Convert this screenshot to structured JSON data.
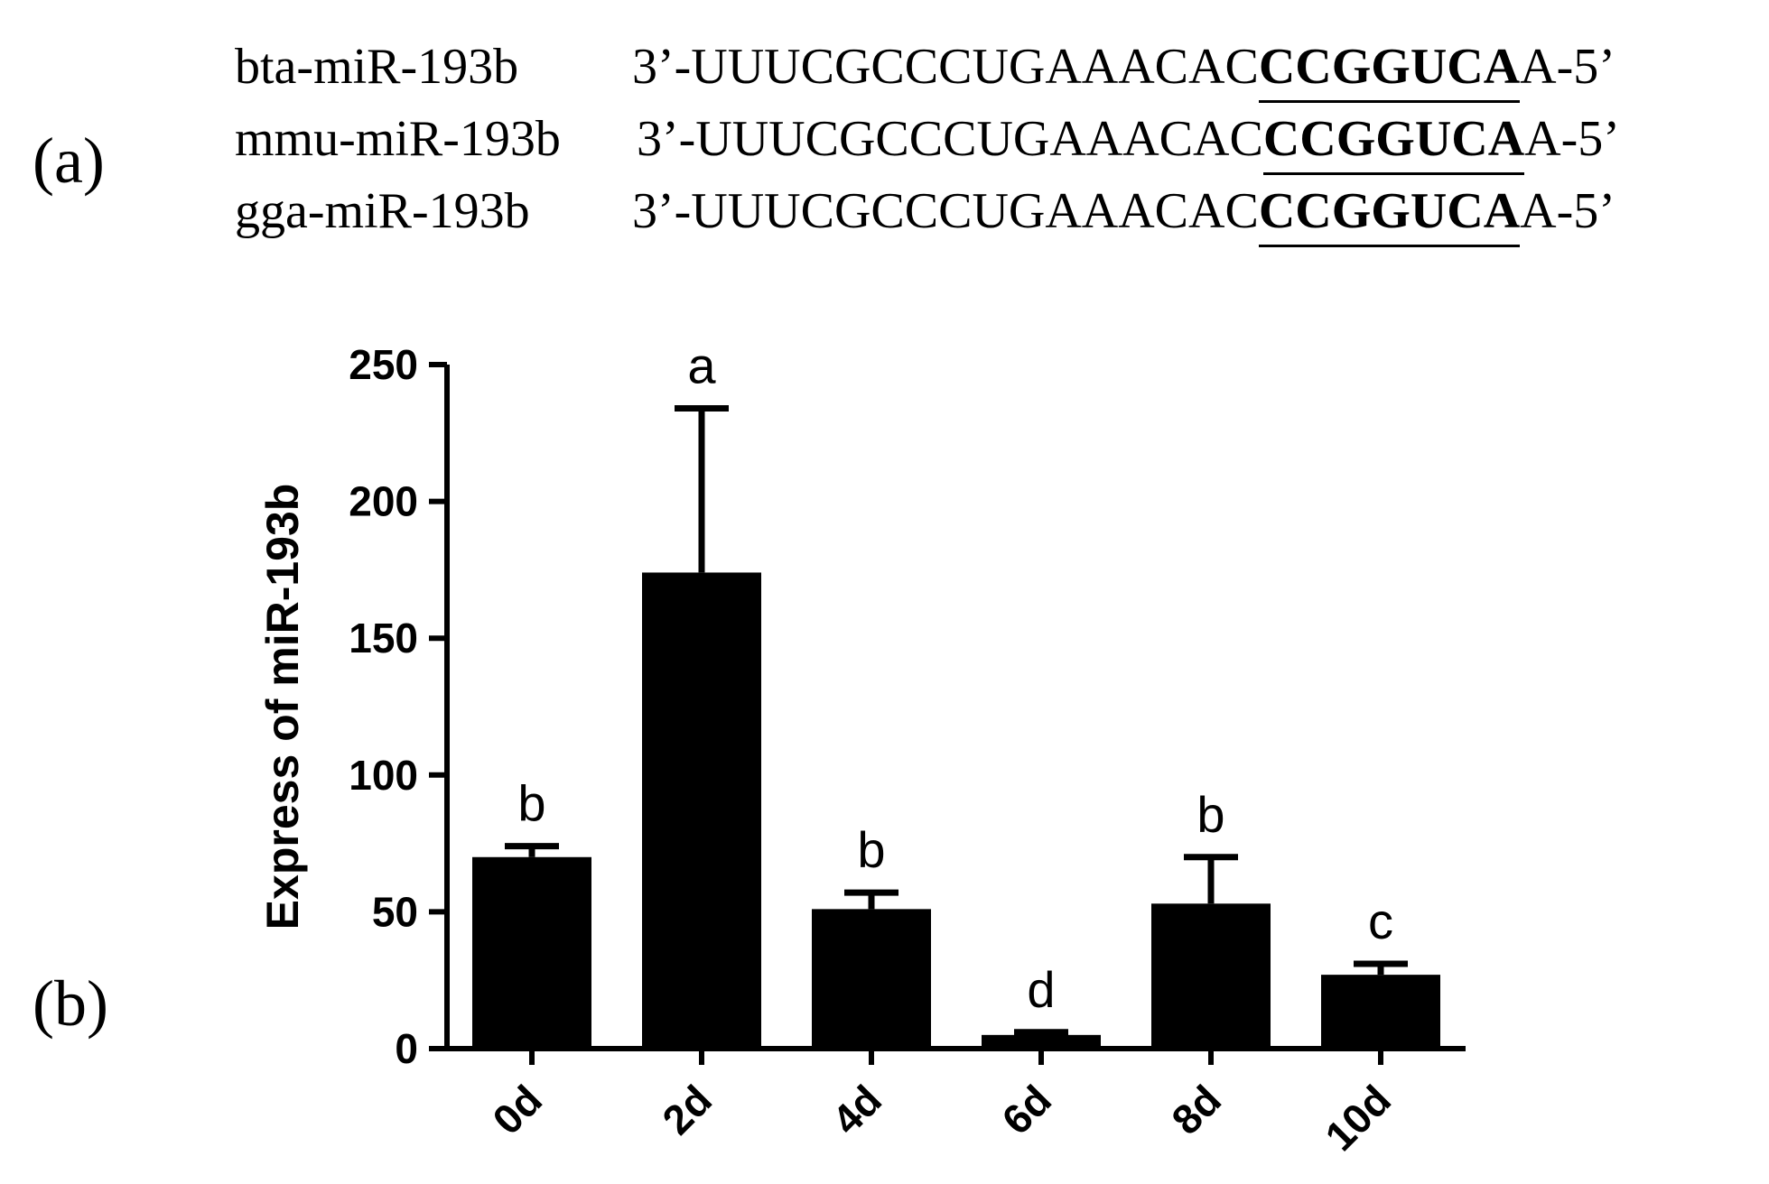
{
  "panels": {
    "a_label": "(a)",
    "b_label": "(b)"
  },
  "sequences": [
    {
      "name": "bta-miR-193b",
      "prefix": "3’-UUUCGCCCUGAAACAC",
      "seed": "CCGGUCA",
      "suffix": "A-5’"
    },
    {
      "name": "mmu-miR-193b",
      "prefix": "3’-UUUCGCCCUGAAACAC",
      "seed": "CCGGUCA",
      "suffix": "A-5’"
    },
    {
      "name": "gga-miR-193b",
      "prefix": "3’-UUUCGCCCUGAAACAC",
      "seed": "CCGGUCA",
      "suffix": "A-5’"
    }
  ],
  "chart_data": {
    "type": "bar",
    "categories": [
      "0d",
      "2d",
      "4d",
      "6d",
      "8d",
      "10d"
    ],
    "values": [
      70,
      174,
      51,
      5,
      53,
      27
    ],
    "errors": [
      4,
      60,
      6,
      1,
      17,
      4
    ],
    "significance": [
      "b",
      "a",
      "b",
      "d",
      "b",
      "c"
    ],
    "title": "",
    "xlabel": "",
    "ylabel": "Express of miR-193b",
    "ylim": [
      0,
      250
    ],
    "yticks": [
      0,
      50,
      100,
      150,
      200,
      250
    ],
    "bar_color": "#000000",
    "grid": false
  }
}
